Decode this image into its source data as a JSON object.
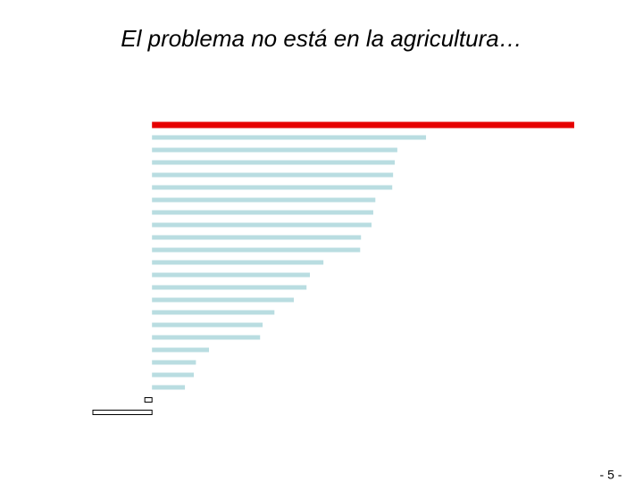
{
  "chart_data": {
    "type": "bar",
    "orientation": "horizontal",
    "title": "El problema no está en la agricultura…",
    "page_number": "- 5 -",
    "values": [
      100,
      64.9,
      58.1,
      57.5,
      57.1,
      56.9,
      52.9,
      52.4,
      52.0,
      49.5,
      49.3,
      40.6,
      37.4,
      36.6,
      33.6,
      29.0,
      26.2,
      25.6,
      13.5,
      10.4,
      9.9,
      7.8,
      -1.7,
      -14.0
    ],
    "colors": [
      "#e60000",
      "#b9dde1",
      "#b9dde1",
      "#b9dde1",
      "#b9dde1",
      "#b9dde1",
      "#b9dde1",
      "#b9dde1",
      "#b9dde1",
      "#b9dde1",
      "#b9dde1",
      "#b9dde1",
      "#b9dde1",
      "#b9dde1",
      "#b9dde1",
      "#b9dde1",
      "#b9dde1",
      "#b9dde1",
      "#b9dde1",
      "#b9dde1",
      "#b9dde1",
      "#b9dde1",
      "#ffffff",
      "#ffffff"
    ],
    "xlim": [
      -14,
      100
    ]
  }
}
